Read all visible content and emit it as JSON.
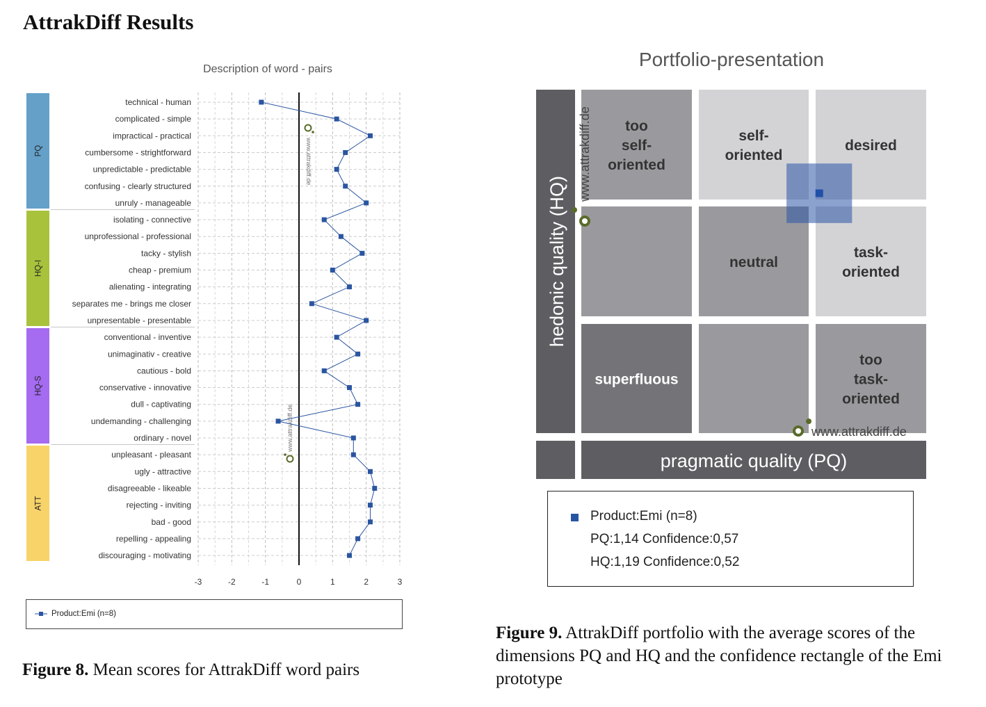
{
  "page": {
    "title": "AttrakDiff Results",
    "fig8_caption_label": "Figure 8.",
    "fig8_caption_text": " Mean scores for AttrakDiff word pairs",
    "fig9_caption_label": "Figure 9.",
    "fig9_caption_text": " AttrakDiff portfolio with the average scores of the dimensions PQ and HQ and the confidence rectangle of the Emi prototype"
  },
  "colors": {
    "PQ": "#64a0c8",
    "HQ-I": "#a8c23c",
    "HQ-S": "#a56bf0",
    "ATT": "#f7d36a",
    "series": "#2a55a0",
    "watermark": "#5a6b2a"
  },
  "chart_data": [
    {
      "type": "line",
      "title": "Description of word - pairs",
      "xlim": [
        -3,
        3
      ],
      "xticks": [
        "-3",
        "-2",
        "-1",
        "0",
        "1",
        "2",
        "3"
      ],
      "grid": true,
      "legend_position": "bottom",
      "watermark": "www.attrakdiff.de",
      "groups": [
        {
          "label": "PQ",
          "rows": 7
        },
        {
          "label": "HQ-I",
          "rows": 7
        },
        {
          "label": "HQ-S",
          "rows": 7
        },
        {
          "label": "ATT",
          "rows": 7
        }
      ],
      "categories": [
        "technical - human",
        "complicated - simple",
        "impractical - practical",
        "cumbersome - strightforward",
        "unpredictable - predictable",
        "confusing - clearly structured",
        "unruly - manageable",
        "isolating - connective",
        "unprofessional - professional",
        "tacky - stylish",
        "cheap - premium",
        "alienating - integrating",
        "separates me - brings me closer",
        "unpresentable - presentable",
        "conventional - inventive",
        "unimaginativ - creative",
        "cautious - bold",
        "conservative - innovative",
        "dull - captivating",
        "undemanding - challenging",
        "ordinary - novel",
        "unpleasant - pleasant",
        "ugly - attractive",
        "disagreeable - likeable",
        "rejecting - inviting",
        "bad - good",
        "repelling - appealing",
        "discouraging - motivating"
      ],
      "series": [
        {
          "name": "Product:Emi (n=8)",
          "values": [
            -1.12,
            1.12,
            2.12,
            1.38,
            1.12,
            1.38,
            2.0,
            0.75,
            1.25,
            1.88,
            1.0,
            1.5,
            0.38,
            2.0,
            1.12,
            1.75,
            0.75,
            1.5,
            1.75,
            -0.62,
            1.62,
            1.62,
            2.12,
            2.25,
            2.12,
            2.12,
            1.75,
            1.5
          ]
        }
      ]
    },
    {
      "type": "scatter",
      "title": "Portfolio-presentation",
      "xlabel": "pragmatic quality (PQ)",
      "ylabel": "hedonic quality (HQ)",
      "xlim": [
        -3,
        3
      ],
      "ylim": [
        -3,
        3
      ],
      "watermark": "www.attrakdiff.de",
      "regions": [
        [
          "too self- oriented",
          "self- oriented",
          "desired"
        ],
        [
          "",
          "neutral",
          "task- oriented"
        ],
        [
          "superfluous",
          "",
          "too task- oriented"
        ]
      ],
      "series": [
        {
          "name": "Product:Emi (n=8)",
          "x": 1.14,
          "y": 1.19,
          "x_confidence": 0.57,
          "y_confidence": 0.52
        }
      ],
      "legend_lines": [
        "Product:Emi (n=8)",
        "PQ:1,14 Confidence:0,57",
        "HQ:1,19 Confidence:0,52"
      ]
    }
  ]
}
